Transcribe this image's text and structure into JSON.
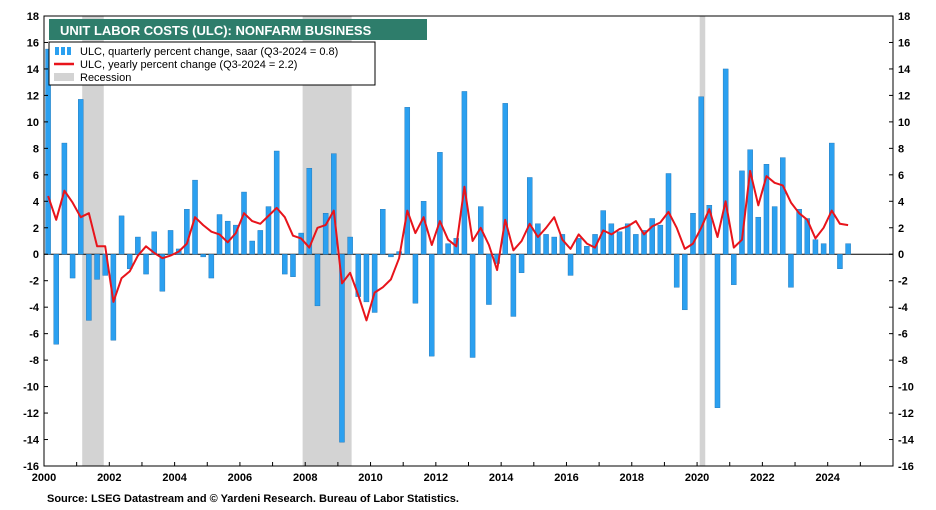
{
  "chart_data": {
    "type": "bar",
    "title": "UNIT LABOR COSTS (ULC): NONFARM BUSINESS",
    "source": "Source: LSEG Datastream and © Yardeni Research. Bureau of Labor Statistics.",
    "colors": {
      "bars": "#2ba0f0",
      "line": "#e8141b",
      "recession": "#d3d3d3",
      "title_bg": "#2e7d6b"
    },
    "legend": [
      {
        "key": "bars",
        "label": "ULC, quarterly percent change, saar (Q3-2024 = 0.8)"
      },
      {
        "key": "line",
        "label": "ULC, yearly percent change (Q3-2024 = 2.2)"
      },
      {
        "key": "recession",
        "label": "Recession"
      }
    ],
    "legend_position": "top-left",
    "grid": false,
    "ylim": [
      -16,
      18
    ],
    "yticks": [
      "-16",
      "-14",
      "-12",
      "-10",
      "-8",
      "-6",
      "-4",
      "-2",
      "0",
      "2",
      "4",
      "6",
      "8",
      "10",
      "12",
      "14",
      "16",
      "18"
    ],
    "xlim": [
      2000,
      2026
    ],
    "xticks": [
      "2000",
      "2002",
      "2004",
      "2006",
      "2008",
      "2010",
      "2012",
      "2014",
      "2016",
      "2018",
      "2020",
      "2022",
      "2024"
    ],
    "recessions": [
      [
        2001.17,
        2001.83
      ],
      [
        2007.92,
        2009.42
      ],
      [
        2020.08,
        2020.25
      ]
    ],
    "start_quarter": "2000 Q1",
    "series": [
      {
        "name": "ULC, quarterly percent change, saar (Q3-2024 = 0.8)",
        "kind": "bar",
        "values": [
          15.5,
          -6.8,
          8.4,
          -1.8,
          11.7,
          -5.0,
          -1.9,
          -1.6,
          -6.5,
          2.9,
          -1.1,
          1.3,
          -1.5,
          1.7,
          -2.8,
          1.8,
          0.4,
          3.4,
          5.6,
          -0.2,
          -1.8,
          3.0,
          2.5,
          2.2,
          4.7,
          1.0,
          1.8,
          3.6,
          7.8,
          -1.5,
          -1.7,
          1.6,
          6.5,
          -3.9,
          3.1,
          7.6,
          -14.2,
          1.3,
          -3.2,
          -3.6,
          -4.4,
          3.4,
          -0.2,
          0.2,
          11.1,
          -3.7,
          4.0,
          -7.7,
          7.7,
          0.8,
          1.2,
          12.3,
          -7.8,
          3.6,
          -3.8,
          -0.7,
          11.4,
          -4.7,
          -1.4,
          5.8,
          2.3,
          1.5,
          1.3,
          1.5,
          -1.6,
          1.2,
          0.6,
          1.5,
          3.3,
          2.3,
          1.7,
          2.3,
          1.5,
          1.8,
          2.7,
          2.2,
          6.1,
          -2.5,
          -4.2,
          3.1,
          11.9,
          3.7,
          -11.6,
          14.0,
          -2.3,
          6.3,
          7.9,
          2.8,
          6.8,
          3.6,
          7.3,
          -2.5,
          3.4,
          2.7,
          1.1,
          0.8,
          8.4,
          -1.1,
          0.8
        ]
      },
      {
        "name": "ULC, yearly percent change (Q3-2024 = 2.2)",
        "kind": "line",
        "values": [
          4.4,
          2.6,
          4.8,
          3.9,
          2.8,
          3.1,
          0.6,
          0.6,
          -3.6,
          -1.8,
          -1.3,
          -0.1,
          0.6,
          0.1,
          -0.3,
          -0.1,
          0.2,
          0.8,
          2.8,
          2.2,
          1.7,
          1.5,
          0.9,
          1.6,
          3.1,
          2.5,
          2.3,
          2.9,
          3.5,
          2.8,
          1.4,
          1.2,
          0.5,
          2.0,
          2.2,
          3.3,
          -2.2,
          -1.4,
          -3.1,
          -5.0,
          -2.9,
          -2.5,
          -1.9,
          -0.3,
          3.3,
          1.6,
          2.8,
          0.7,
          2.5,
          1.1,
          0.6,
          5.1,
          1.0,
          2.0,
          0.7,
          -1.2,
          2.6,
          0.3,
          1.0,
          2.3,
          1.3,
          2.0,
          2.8,
          1.1,
          0.4,
          1.5,
          0.8,
          0.5,
          1.8,
          1.5,
          1.9,
          2.1,
          2.5,
          1.5,
          2.1,
          2.4,
          3.2,
          2.0,
          0.4,
          0.8,
          2.0,
          3.4,
          1.3,
          4.0,
          0.5,
          1.1,
          6.3,
          3.7,
          5.9,
          5.4,
          5.2,
          3.9,
          3.1,
          2.6,
          1.2,
          2.0,
          3.3,
          2.3,
          2.2
        ]
      }
    ]
  }
}
